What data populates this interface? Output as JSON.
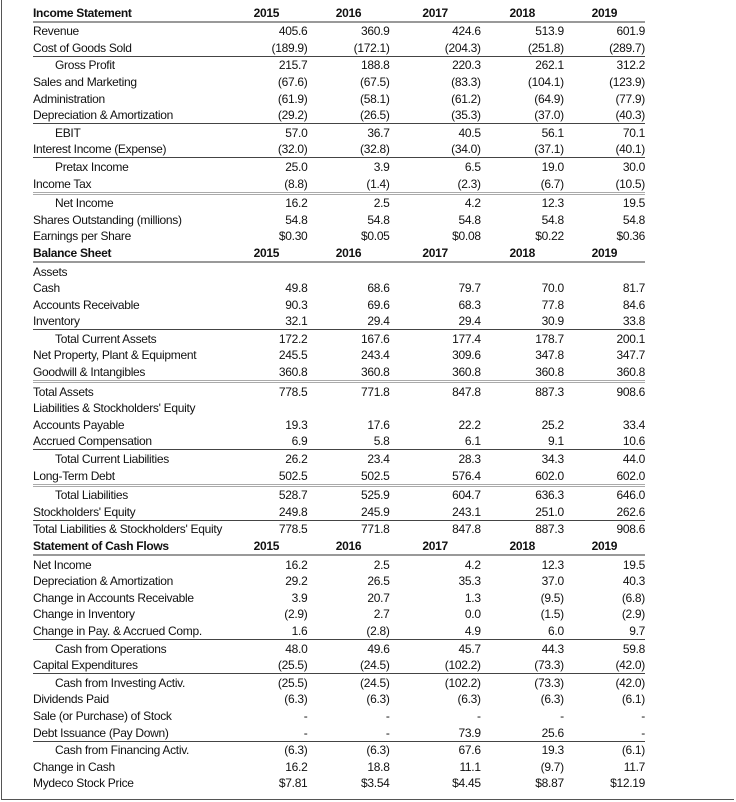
{
  "years": [
    "2015",
    "2016",
    "2017",
    "2018",
    "2019"
  ],
  "sections": [
    {
      "title": "Income Statement",
      "rows": [
        {
          "label": "Revenue",
          "values": [
            "405.6",
            "360.9",
            "424.6",
            "513.9",
            "601.9"
          ]
        },
        {
          "label": "Cost of Goods Sold",
          "values": [
            "(189.9)",
            "(172.1)",
            "(204.3)",
            "(251.8)",
            "(289.7)"
          ]
        },
        {
          "label": "Gross Profit",
          "values": [
            "215.7",
            "188.8",
            "220.3",
            "262.1",
            "312.2"
          ],
          "indent": true,
          "rule": "single"
        },
        {
          "label": "Sales and Marketing",
          "values": [
            "(67.6)",
            "(67.5)",
            "(83.3)",
            "(104.1)",
            "(123.9)"
          ]
        },
        {
          "label": "Administration",
          "values": [
            "(61.9)",
            "(58.1)",
            "(61.2)",
            "(64.9)",
            "(77.9)"
          ]
        },
        {
          "label": "Depreciation & Amortization",
          "values": [
            "(29.2)",
            "(26.5)",
            "(35.3)",
            "(37.0)",
            "(40.3)"
          ]
        },
        {
          "label": "EBIT",
          "values": [
            "57.0",
            "36.7",
            "40.5",
            "56.1",
            "70.1"
          ],
          "indent": true,
          "rule": "single"
        },
        {
          "label": "Interest Income (Expense)",
          "values": [
            "(32.0)",
            "(32.8)",
            "(34.0)",
            "(37.1)",
            "(40.1)"
          ]
        },
        {
          "label": "Pretax Income",
          "values": [
            "25.0",
            "3.9",
            "6.5",
            "19.0",
            "30.0"
          ],
          "indent": true,
          "rule": "single"
        },
        {
          "label": "Income Tax",
          "values": [
            "(8.8)",
            "(1.4)",
            "(2.3)",
            "(6.7)",
            "(10.5)"
          ]
        },
        {
          "label": "Net Income",
          "values": [
            "16.2",
            "2.5",
            "4.2",
            "12.3",
            "19.5"
          ],
          "indent": true,
          "rule": "double"
        },
        {
          "label": "Shares Outstanding (millions)",
          "values": [
            "54.8",
            "54.8",
            "54.8",
            "54.8",
            "54.8"
          ]
        },
        {
          "label": "Earnings per Share",
          "values": [
            "$0.30",
            "$0.05",
            "$0.08",
            "$0.22",
            "$0.36"
          ]
        }
      ]
    },
    {
      "title": "Balance Sheet",
      "rows": [
        {
          "label": "Assets",
          "values": [
            "",
            "",
            "",
            "",
            ""
          ]
        },
        {
          "label": "Cash",
          "values": [
            "49.8",
            "68.6",
            "79.7",
            "70.0",
            "81.7"
          ]
        },
        {
          "label": "Accounts Receivable",
          "values": [
            "90.3",
            "69.6",
            "68.3",
            "77.8",
            "84.6"
          ]
        },
        {
          "label": "Inventory",
          "values": [
            "32.1",
            "29.4",
            "29.4",
            "30.9",
            "33.8"
          ]
        },
        {
          "label": "Total Current Assets",
          "values": [
            "172.2",
            "167.6",
            "177.4",
            "178.7",
            "200.1"
          ],
          "indent": true,
          "rule": "single"
        },
        {
          "label": "Net Property, Plant & Equipment",
          "values": [
            "245.5",
            "243.4",
            "309.6",
            "347.8",
            "347.7"
          ]
        },
        {
          "label": "Goodwill & Intangibles",
          "values": [
            "360.8",
            "360.8",
            "360.8",
            "360.8",
            "360.8"
          ]
        },
        {
          "label": "Total Assets",
          "values": [
            "778.5",
            "771.8",
            "847.8",
            "887.3",
            "908.6"
          ],
          "rule": "double"
        },
        {
          "label": "Liabilities & Stockholders' Equity",
          "values": [
            "",
            "",
            "",
            "",
            ""
          ]
        },
        {
          "label": "Accounts Payable",
          "values": [
            "19.3",
            "17.6",
            "22.2",
            "25.2",
            "33.4"
          ]
        },
        {
          "label": "Accrued Compensation",
          "values": [
            "6.9",
            "5.8",
            "6.1",
            "9.1",
            "10.6"
          ]
        },
        {
          "label": "Total Current Liabilities",
          "values": [
            "26.2",
            "23.4",
            "28.3",
            "34.3",
            "44.0"
          ],
          "indent": true,
          "rule": "single"
        },
        {
          "label": "Long-Term Debt",
          "values": [
            "502.5",
            "502.5",
            "576.4",
            "602.0",
            "602.0"
          ]
        },
        {
          "label": "Total Liabilities",
          "values": [
            "528.7",
            "525.9",
            "604.7",
            "636.3",
            "646.0"
          ],
          "indent": true,
          "rule": "double"
        },
        {
          "label": "Stockholders' Equity",
          "values": [
            "249.8",
            "245.9",
            "243.1",
            "251.0",
            "262.6"
          ]
        },
        {
          "label": "Total Liabilities & Stockholders' Equity",
          "values": [
            "778.5",
            "771.8",
            "847.8",
            "887.3",
            "908.6"
          ],
          "rule": "single",
          "wrap": true
        }
      ]
    },
    {
      "title": "Statement of Cash Flows",
      "rows": [
        {
          "label": "Net Income",
          "values": [
            "16.2",
            "2.5",
            "4.2",
            "12.3",
            "19.5"
          ]
        },
        {
          "label": "Depreciation & Amortization",
          "values": [
            "29.2",
            "26.5",
            "35.3",
            "37.0",
            "40.3"
          ]
        },
        {
          "label": "Change in Accounts Receivable",
          "values": [
            "3.9",
            "20.7",
            "1.3",
            "(9.5)",
            "(6.8)"
          ]
        },
        {
          "label": "Change in Inventory",
          "values": [
            "(2.9)",
            "2.7",
            "0.0",
            "(1.5)",
            "(2.9)"
          ]
        },
        {
          "label": "Change in Pay. & Accrued Comp.",
          "values": [
            "1.6",
            "(2.8)",
            "4.9",
            "6.0",
            "9.7"
          ]
        },
        {
          "label": "Cash from Operations",
          "values": [
            "48.0",
            "49.6",
            "45.7",
            "44.3",
            "59.8"
          ],
          "indent": true,
          "rule": "single"
        },
        {
          "label": "Capital Expenditures",
          "values": [
            "(25.5)",
            "(24.5)",
            "(102.2)",
            "(73.3)",
            "(42.0)"
          ]
        },
        {
          "label": "Cash from Investing Activ.",
          "values": [
            "(25.5)",
            "(24.5)",
            "(102.2)",
            "(73.3)",
            "(42.0)"
          ],
          "indent": true,
          "rule": "single"
        },
        {
          "label": "Dividends Paid",
          "values": [
            "(6.3)",
            "(6.3)",
            "(6.3)",
            "(6.3)",
            "(6.1)"
          ]
        },
        {
          "label": "Sale (or Purchase) of Stock",
          "values": [
            "-",
            "-",
            "-",
            "-",
            "-"
          ]
        },
        {
          "label": "Debt Issuance (Pay Down)",
          "values": [
            "-",
            "-",
            "73.9",
            "25.6",
            "-"
          ]
        },
        {
          "label": "Cash from Financing Activ.",
          "values": [
            "(6.3)",
            "(6.3)",
            "67.6",
            "19.3",
            "(6.1)"
          ],
          "indent": true,
          "rule": "single"
        },
        {
          "label": "Change in Cash",
          "values": [
            "16.2",
            "18.8",
            "11.1",
            "(9.7)",
            "11.7"
          ]
        },
        {
          "label": "Mydeco Stock Price",
          "values": [
            "$7.81",
            "$3.54",
            "$4.45",
            "$8.87",
            "$12.19"
          ]
        }
      ]
    }
  ]
}
